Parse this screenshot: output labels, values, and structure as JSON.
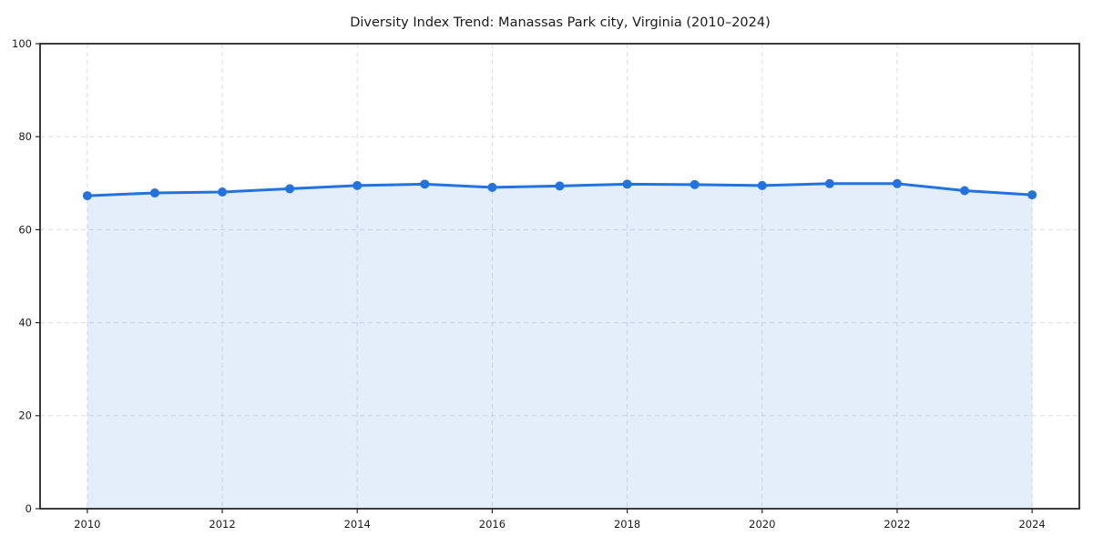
{
  "title": "Diversity Index Trend: Manassas Park city, Virginia (2010–2024)",
  "colors": {
    "line": "#2372e2",
    "fill_opacity": 0.12,
    "grid": "#dcdce2",
    "spine": "#262626",
    "tick_text": "#1a1a1a",
    "background": "#ffffff"
  },
  "chart_data": {
    "type": "line",
    "title": "Diversity Index Trend: Manassas Park city, Virginia (2010–2024)",
    "x": [
      2010,
      2011,
      2012,
      2013,
      2014,
      2015,
      2016,
      2017,
      2018,
      2019,
      2020,
      2021,
      2022,
      2023,
      2024
    ],
    "values": [
      67.3,
      67.9,
      68.1,
      68.8,
      69.5,
      69.8,
      69.1,
      69.4,
      69.8,
      69.7,
      69.5,
      69.9,
      69.9,
      68.4,
      67.5
    ],
    "series_name": "Diversity Index",
    "xlabel": "",
    "ylabel": "",
    "x_ticks": [
      2010,
      2012,
      2014,
      2016,
      2018,
      2020,
      2022,
      2024
    ],
    "x_tick_labels": [
      "2010",
      "2012",
      "2014",
      "2016",
      "2018",
      "2020",
      "2022",
      "2024"
    ],
    "y_ticks": [
      0,
      20,
      40,
      60,
      80,
      100
    ],
    "y_tick_labels": [
      "0",
      "20",
      "40",
      "60",
      "80",
      "100"
    ],
    "ylim": [
      0,
      100
    ],
    "xlim_pad_fraction": 0.05,
    "grid": true,
    "grid_style": "dashed",
    "legend": false,
    "marker": "circle",
    "area_fill": true
  }
}
